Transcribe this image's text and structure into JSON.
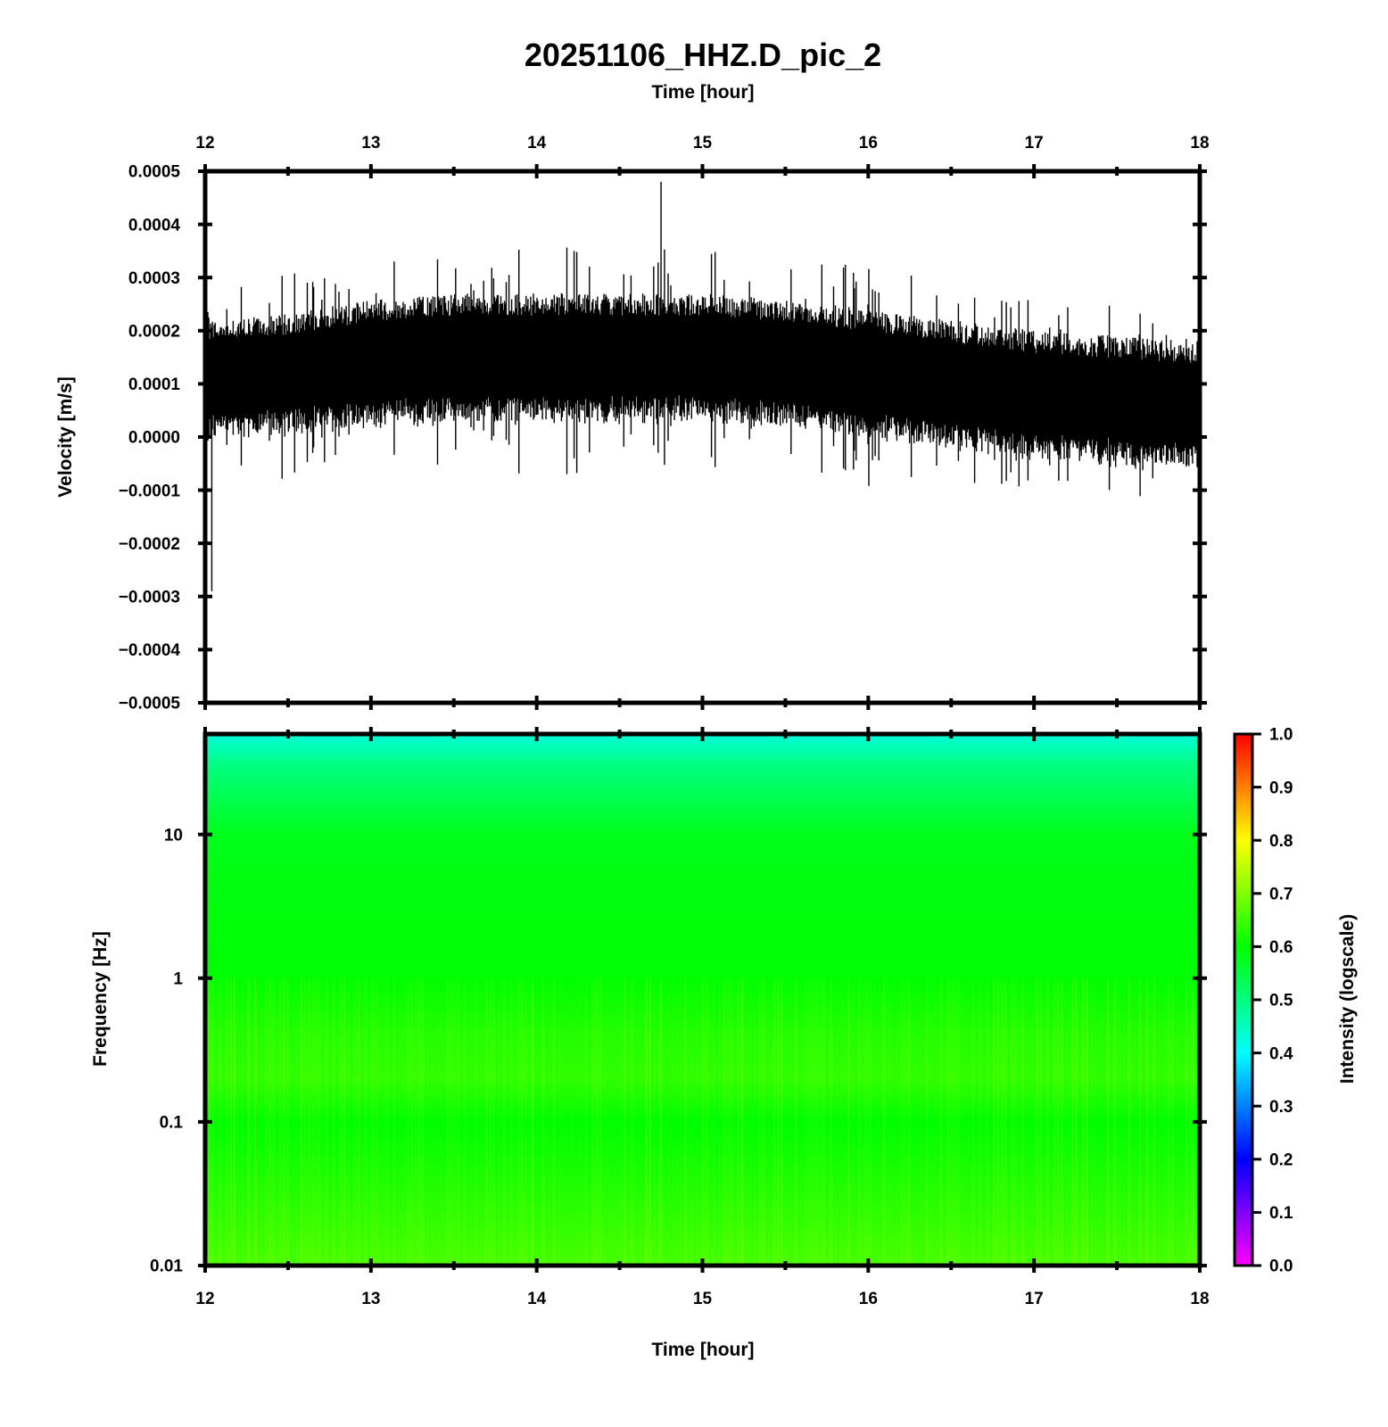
{
  "title": "20251106_HHZ.D_pic_2",
  "colors": {
    "trace": "#000000",
    "frame": "#000000",
    "colormap": [
      "#ff00ff",
      "#0000ff",
      "#00ffff",
      "#00ff00",
      "#ffff00",
      "#ff0000"
    ]
  },
  "chart_data": [
    {
      "type": "line",
      "name": "seismogram",
      "xlabel": "Time [hour]",
      "ylabel": "Velocity [m/s]",
      "xlim": [
        12,
        18
      ],
      "ylim": [
        -0.0005,
        0.0005
      ],
      "x_ticks": [
        "12",
        "13",
        "14",
        "15",
        "16",
        "17",
        "18"
      ],
      "y_ticks": [
        "0.0005",
        "0.0004",
        "0.0003",
        "0.0002",
        "0.0001",
        "0.0000",
        "−0.0001",
        "−0.0002",
        "−0.0003",
        "−0.0004",
        "−0.0005"
      ],
      "grid": false,
      "envelope": {
        "x": [
          12.0,
          12.5,
          13.0,
          13.5,
          14.0,
          14.5,
          15.0,
          15.5,
          16.0,
          16.5,
          17.0,
          17.5,
          18.0
        ],
        "center": [
          0.00011,
          0.00012,
          0.00014,
          0.00015,
          0.00015,
          0.00015,
          0.00015,
          0.00014,
          0.00012,
          0.0001,
          8e-05,
          7e-05,
          6e-05
        ],
        "dense_amplitude": [
          0.00011,
          0.00011,
          0.00012,
          0.00012,
          0.00012,
          0.00012,
          0.00012,
          0.00012,
          0.00012,
          0.00012,
          0.00012,
          0.00012,
          0.00012
        ],
        "spike_amplitude": [
          0.00018,
          0.00019,
          0.00021,
          0.0002,
          0.00021,
          0.0002,
          0.00021,
          0.0002,
          0.0002,
          0.00019,
          0.00019,
          0.00019,
          0.00018
        ]
      },
      "extremes": {
        "max": {
          "x": 14.75,
          "y": 0.00048
        },
        "min": {
          "x": 12.04,
          "y": -0.00029
        }
      }
    },
    {
      "type": "heatmap",
      "name": "spectrogram",
      "xlabel": "Time [hour]",
      "ylabel": "Frequency [Hz]",
      "xlim": [
        12,
        18
      ],
      "ylim": [
        0.01,
        50
      ],
      "y_scale": "log",
      "x_ticks": [
        "12",
        "13",
        "14",
        "15",
        "16",
        "17",
        "18"
      ],
      "y_ticks": [
        "10",
        "1",
        "0.1",
        "0.01"
      ],
      "intensity_profile": {
        "frequency": [
          50,
          30,
          10,
          1,
          0.4,
          0.2,
          0.1,
          0.01
        ],
        "intensity": [
          0.43,
          0.5,
          0.58,
          0.6,
          0.63,
          0.64,
          0.6,
          0.66
        ]
      },
      "colorbar": {
        "label": "Intensity (logscale)",
        "range": [
          0.0,
          1.0
        ],
        "ticks": [
          "1.0",
          "0.9",
          "0.8",
          "0.7",
          "0.6",
          "0.5",
          "0.4",
          "0.3",
          "0.2",
          "0.1",
          "0.0"
        ]
      }
    }
  ]
}
